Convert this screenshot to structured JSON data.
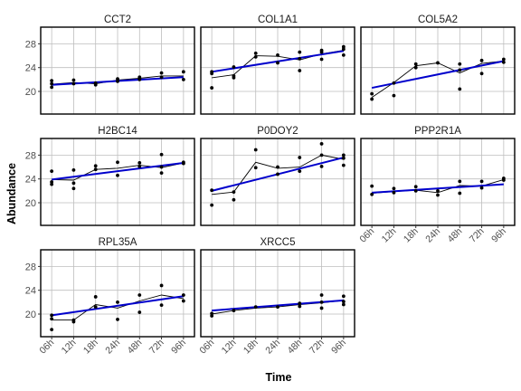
{
  "chart_data": {
    "type": "scatter",
    "title": "",
    "xlabel": "Time",
    "ylabel": "Abundance",
    "x_categories": [
      "06h",
      "12h",
      "18h",
      "24h",
      "48h",
      "72h",
      "96h"
    ],
    "y_ticks": [
      20,
      24,
      28
    ],
    "ylim": [
      16.2,
      30.8
    ],
    "grid": true,
    "legend": "none",
    "colors": {
      "points": "#000000",
      "mean_line": "#000000",
      "trend_line": "#0000cc",
      "grid": "#bebebe",
      "border": "#000000"
    },
    "panels": [
      {
        "name": "CCT2",
        "points": [
          [
            0,
            21.8
          ],
          [
            0,
            21.3
          ],
          [
            0,
            20.7
          ],
          [
            1,
            21.9
          ],
          [
            1,
            21.3
          ],
          [
            2,
            21.4
          ],
          [
            2,
            21.1
          ],
          [
            3,
            22.1
          ],
          [
            3,
            21.7
          ],
          [
            4,
            22.4
          ],
          [
            4,
            22.0
          ],
          [
            5,
            23.1
          ],
          [
            5,
            22.4
          ],
          [
            6,
            23.3
          ],
          [
            6,
            22.0
          ]
        ],
        "means": [
          21.2,
          21.5,
          21.3,
          21.9,
          22.2,
          22.6,
          22.6
        ],
        "trend": [
          21.1,
          22.4
        ]
      },
      {
        "name": "COL1A1",
        "points": [
          [
            0,
            20.6
          ],
          [
            0,
            23.3
          ],
          [
            0,
            23.0
          ],
          [
            1,
            24.1
          ],
          [
            1,
            22.3
          ],
          [
            1,
            22.6
          ],
          [
            2,
            26.4
          ],
          [
            2,
            25.8
          ],
          [
            3,
            26.1
          ],
          [
            3,
            24.8
          ],
          [
            4,
            26.6
          ],
          [
            4,
            25.5
          ],
          [
            4,
            23.5
          ],
          [
            5,
            26.6
          ],
          [
            5,
            25.4
          ],
          [
            5,
            26.9
          ],
          [
            6,
            27.5
          ],
          [
            6,
            26.1
          ],
          [
            6,
            27.1
          ]
        ],
        "means": [
          22.3,
          22.8,
          26.0,
          25.9,
          25.3,
          26.3,
          26.9
        ],
        "trend": [
          23.3,
          26.8
        ]
      },
      {
        "name": "COL5A2",
        "points": [
          [
            0,
            19.6
          ],
          [
            0,
            18.7
          ],
          [
            1,
            19.3
          ],
          [
            1,
            21.4
          ],
          [
            2,
            24.6
          ],
          [
            2,
            24.0
          ],
          [
            3,
            24.8
          ],
          [
            4,
            24.6
          ],
          [
            4,
            20.4
          ],
          [
            4,
            23.6
          ],
          [
            5,
            25.2
          ],
          [
            5,
            23.0
          ],
          [
            6,
            25.4
          ],
          [
            6,
            24.9
          ]
        ],
        "means": [
          19.0,
          21.5,
          24.3,
          24.8,
          23.1,
          24.7,
          25.1
        ],
        "trend": [
          20.6,
          25.1
        ]
      },
      {
        "name": "H2BC14",
        "points": [
          [
            0,
            25.3
          ],
          [
            0,
            23.5
          ],
          [
            0,
            23.1
          ],
          [
            1,
            25.5
          ],
          [
            1,
            22.4
          ],
          [
            1,
            23.3
          ],
          [
            2,
            26.2
          ],
          [
            2,
            25.6
          ],
          [
            3,
            26.8
          ],
          [
            3,
            24.6
          ],
          [
            4,
            26.7
          ],
          [
            4,
            26.1
          ],
          [
            5,
            28.1
          ],
          [
            5,
            25.0
          ],
          [
            5,
            26.0
          ],
          [
            6,
            26.8
          ],
          [
            6,
            26.6
          ]
        ],
        "means": [
          23.9,
          23.8,
          25.6,
          25.8,
          26.3,
          25.9,
          26.7
        ],
        "trend": [
          23.9,
          26.7
        ]
      },
      {
        "name": "P0DOY2",
        "points": [
          [
            0,
            22.1
          ],
          [
            0,
            19.6
          ],
          [
            1,
            21.8
          ],
          [
            1,
            20.5
          ],
          [
            2,
            28.9
          ],
          [
            2,
            25.9
          ],
          [
            3,
            26.0
          ],
          [
            3,
            24.8
          ],
          [
            4,
            25.3
          ],
          [
            4,
            27.6
          ],
          [
            5,
            29.9
          ],
          [
            5,
            28.0
          ],
          [
            5,
            26.1
          ],
          [
            6,
            28.0
          ],
          [
            6,
            26.3
          ],
          [
            6,
            27.5
          ]
        ],
        "means": [
          21.4,
          21.8,
          26.8,
          25.8,
          26.0,
          28.0,
          27.3
        ],
        "trend": [
          22.0,
          27.6
        ]
      },
      {
        "name": "PPP2R1A",
        "points": [
          [
            0,
            22.8
          ],
          [
            0,
            21.4
          ],
          [
            1,
            22.4
          ],
          [
            1,
            21.7
          ],
          [
            2,
            22.7
          ],
          [
            2,
            22.0
          ],
          [
            3,
            22.0
          ],
          [
            3,
            21.3
          ],
          [
            4,
            23.6
          ],
          [
            4,
            21.6
          ],
          [
            5,
            23.6
          ],
          [
            5,
            22.5
          ],
          [
            6,
            24.1
          ],
          [
            6,
            23.8
          ]
        ],
        "means": [
          21.6,
          21.9,
          22.1,
          21.7,
          22.9,
          22.8,
          23.9
        ],
        "trend": [
          21.7,
          23.1
        ]
      },
      {
        "name": "RPL35A",
        "points": [
          [
            0,
            17.4
          ],
          [
            0,
            19.2
          ],
          [
            0,
            19.8
          ],
          [
            1,
            19.0
          ],
          [
            1,
            18.7
          ],
          [
            2,
            22.9
          ],
          [
            2,
            21.2
          ],
          [
            3,
            22.0
          ],
          [
            3,
            19.1
          ],
          [
            4,
            23.2
          ],
          [
            4,
            20.3
          ],
          [
            5,
            24.8
          ],
          [
            5,
            21.5
          ],
          [
            6,
            23.2
          ],
          [
            6,
            22.2
          ]
        ],
        "means": [
          19.0,
          19.0,
          21.6,
          21.0,
          22.2,
          23.2,
          22.6
        ],
        "trend": [
          19.8,
          23.0
        ]
      },
      {
        "name": "XRCC5",
        "points": [
          [
            0,
            20.1
          ],
          [
            0,
            19.7
          ],
          [
            1,
            20.6
          ],
          [
            2,
            21.2
          ],
          [
            3,
            21.2
          ],
          [
            4,
            21.8
          ],
          [
            4,
            21.3
          ],
          [
            5,
            23.2
          ],
          [
            5,
            21.0
          ],
          [
            5,
            22.0
          ],
          [
            6,
            23.0
          ],
          [
            6,
            22.1
          ],
          [
            6,
            21.6
          ]
        ],
        "means": [
          20.0,
          20.6,
          21.0,
          21.2,
          21.6,
          21.9,
          22.3
        ],
        "trend": [
          20.6,
          22.3
        ]
      }
    ]
  }
}
